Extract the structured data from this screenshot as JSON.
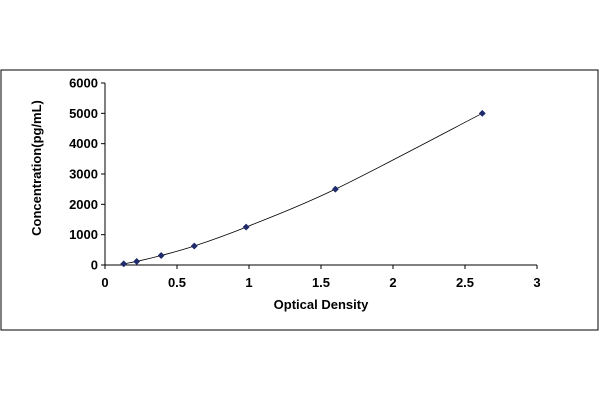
{
  "chart_data": {
    "type": "scatter",
    "title": "",
    "xlabel": "Optical Density",
    "ylabel": "Concentration(pg/mL)",
    "xlim": [
      0,
      3
    ],
    "ylim": [
      0,
      6000
    ],
    "x_ticks": [
      0,
      0.5,
      1,
      1.5,
      2,
      2.5,
      3
    ],
    "x_tick_labels": [
      "0",
      "0.5",
      "1",
      "1.5",
      "2",
      "2.5",
      "3"
    ],
    "y_ticks": [
      0,
      1000,
      2000,
      3000,
      4000,
      5000,
      6000
    ],
    "y_tick_labels": [
      "0",
      "1000",
      "2000",
      "3000",
      "4000",
      "5000",
      "6000"
    ],
    "grid": false,
    "legend": "none",
    "trendline": true,
    "series": [
      {
        "points": [
          {
            "x": 0.13,
            "y": 39
          },
          {
            "x": 0.22,
            "y": 117
          },
          {
            "x": 0.39,
            "y": 313
          },
          {
            "x": 0.62,
            "y": 625
          },
          {
            "x": 0.98,
            "y": 1250
          },
          {
            "x": 1.6,
            "y": 2500
          },
          {
            "x": 2.62,
            "y": 5000
          }
        ]
      }
    ],
    "colors": {
      "marker": "#1f2a6b",
      "line": "#000000",
      "axis": "#000000",
      "frame": "#000000"
    }
  }
}
